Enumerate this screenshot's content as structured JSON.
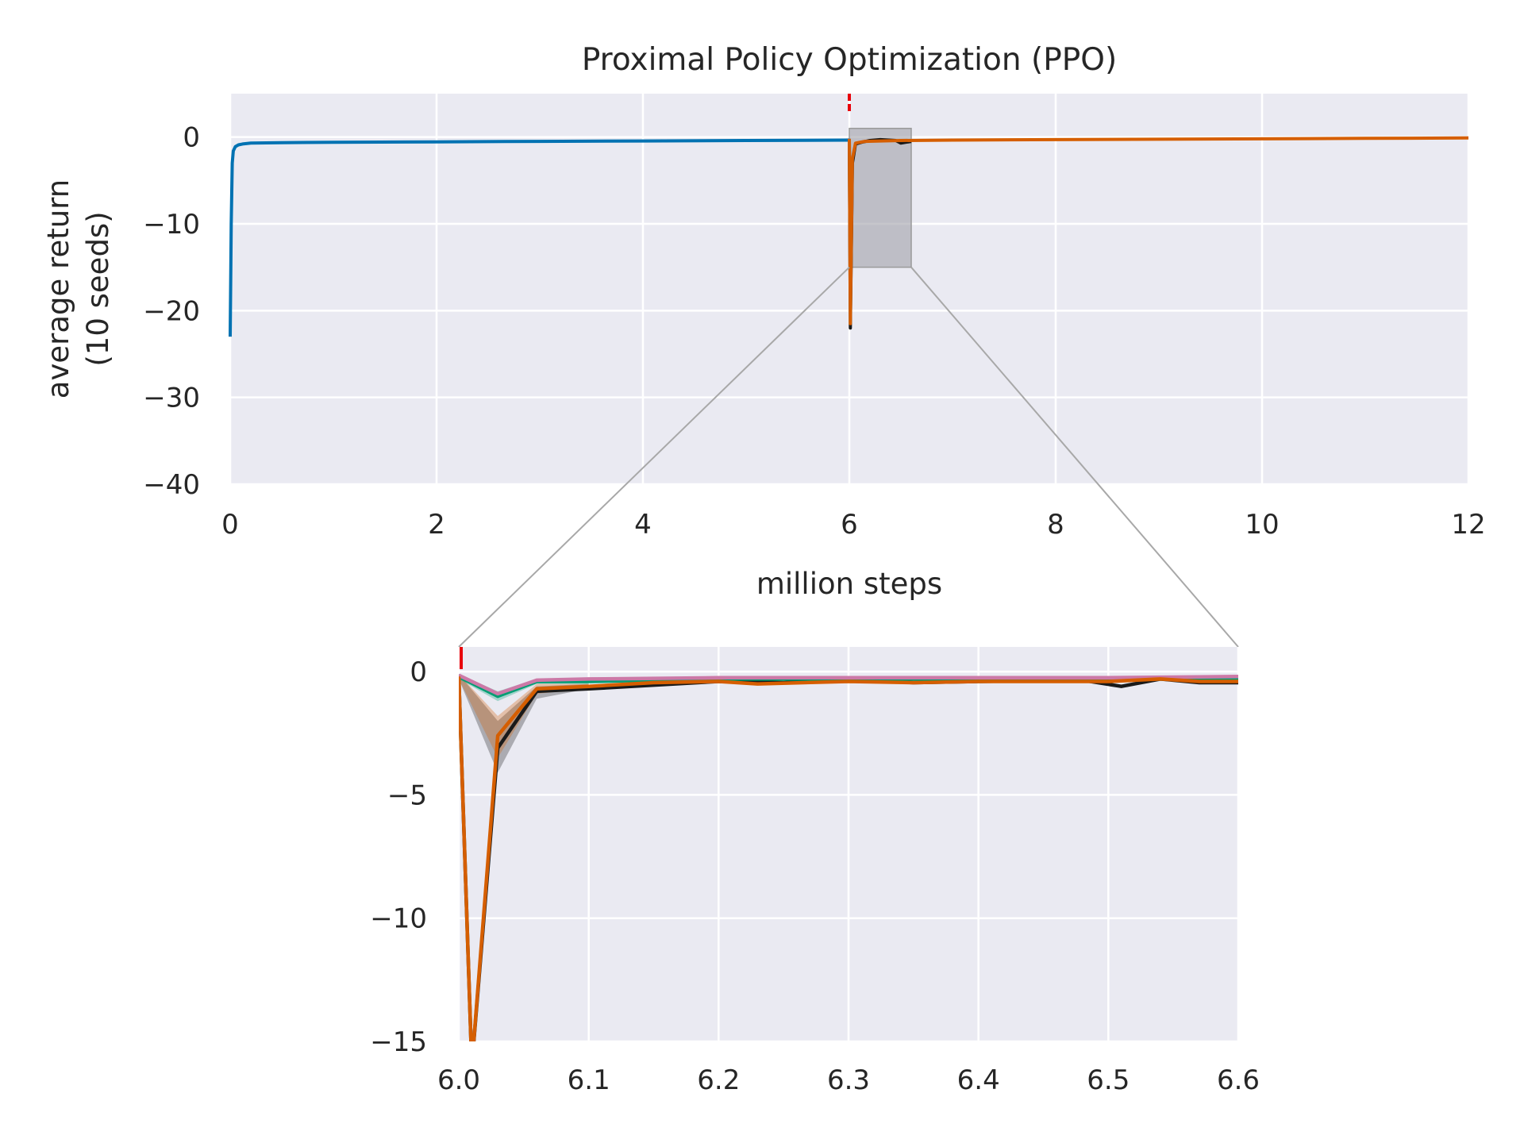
{
  "chart_data": [
    {
      "type": "line",
      "title": "Proximal Policy Optimization (PPO)",
      "xlabel": "million steps",
      "ylabel_lines": [
        "average return",
        "(10 seeds)"
      ],
      "xlim": [
        0,
        12
      ],
      "ylim": [
        -40,
        5
      ],
      "xticks": [
        0,
        2,
        4,
        6,
        8,
        10,
        12
      ],
      "yticks": [
        0,
        -10,
        -20,
        -30,
        -40
      ],
      "grid": true,
      "annotations": {
        "switch_marker_x": 6,
        "zoom_region": {
          "x": [
            6.0,
            6.6
          ],
          "y": [
            -15,
            1
          ]
        }
      },
      "series": [
        {
          "color": "#0072b2",
          "x": [
            0,
            0.01,
            0.02,
            0.03,
            0.05,
            0.08,
            0.12,
            0.2,
            0.5,
            1,
            2,
            3,
            4,
            5,
            6
          ],
          "y": [
            -23,
            -10,
            -3,
            -1.6,
            -1.1,
            -0.9,
            -0.8,
            -0.7,
            -0.65,
            -0.6,
            -0.55,
            -0.5,
            -0.45,
            -0.4,
            -0.35
          ]
        },
        {
          "color": "#1a1a1a",
          "x": [
            6,
            6.01,
            6.03,
            6.06,
            6.12,
            6.2,
            6.3,
            6.45,
            6.5,
            6.6
          ],
          "y": [
            -0.2,
            -22,
            -3,
            -0.8,
            -0.6,
            -0.4,
            -0.3,
            -0.4,
            -0.7,
            -0.5
          ]
        },
        {
          "color": "#d55e00",
          "x": [
            6,
            6.01,
            6.03,
            6.06,
            6.15,
            6.3,
            6.5,
            7,
            8,
            9,
            10,
            11,
            12
          ],
          "y": [
            -0.2,
            -21.5,
            -2.5,
            -0.7,
            -0.5,
            -0.45,
            -0.4,
            -0.35,
            -0.3,
            -0.25,
            -0.2,
            -0.15,
            -0.1
          ]
        }
      ]
    },
    {
      "type": "line",
      "title": "",
      "xlim": [
        6.0,
        6.6
      ],
      "ylim": [
        -15,
        1
      ],
      "xticks": [
        6.0,
        6.1,
        6.2,
        6.3,
        6.4,
        6.5,
        6.6
      ],
      "xtick_labels": [
        "6.0",
        "6.1",
        "6.2",
        "6.3",
        "6.4",
        "6.5",
        "6.6"
      ],
      "yticks": [
        0,
        -5,
        -10,
        -15
      ],
      "grid": true,
      "annotations": {
        "switch_marker_x": 6.0
      },
      "bands": [
        {
          "color": "#1a1a1a",
          "x": [
            6.0,
            6.03,
            6.06,
            6.1
          ],
          "upper": [
            -0.1,
            -2.0,
            -0.6,
            -0.5
          ],
          "lower": [
            -0.3,
            -4.1,
            -1.1,
            -0.7
          ]
        },
        {
          "color": "#d55e00",
          "x": [
            6.0,
            6.03,
            6.06,
            6.1
          ],
          "upper": [
            -0.1,
            -1.8,
            -0.5,
            -0.5
          ],
          "lower": [
            -0.3,
            -3.5,
            -0.9,
            -0.7
          ]
        },
        {
          "color": "#009e73",
          "x": [
            6.0,
            6.03,
            6.06,
            6.1
          ],
          "upper": [
            -0.1,
            -0.8,
            -0.3,
            -0.3
          ],
          "lower": [
            -0.3,
            -1.2,
            -0.5,
            -0.5
          ]
        }
      ],
      "series": [
        {
          "color": "#1a1a1a",
          "x": [
            6.0,
            6.01,
            6.03,
            6.06,
            6.1,
            6.15,
            6.2,
            6.25,
            6.3,
            6.35,
            6.4,
            6.48,
            6.51,
            6.54,
            6.57,
            6.6
          ],
          "y": [
            -0.2,
            -16,
            -3.1,
            -0.8,
            -0.7,
            -0.55,
            -0.4,
            -0.45,
            -0.3,
            -0.45,
            -0.4,
            -0.35,
            -0.6,
            -0.3,
            -0.45,
            -0.45
          ]
        },
        {
          "color": "#009e73",
          "x": [
            6.0,
            6.03,
            6.06,
            6.1,
            6.15,
            6.2,
            6.3,
            6.4,
            6.5,
            6.6
          ],
          "y": [
            -0.2,
            -1.0,
            -0.4,
            -0.4,
            -0.35,
            -0.3,
            -0.3,
            -0.3,
            -0.3,
            -0.3
          ]
        },
        {
          "color": "#cc79a7",
          "x": [
            6.0,
            6.03,
            6.06,
            6.1,
            6.2,
            6.3,
            6.4,
            6.5,
            6.6
          ],
          "y": [
            -0.15,
            -0.9,
            -0.35,
            -0.3,
            -0.25,
            -0.25,
            -0.25,
            -0.25,
            -0.2
          ]
        },
        {
          "color": "#d55e00",
          "x": [
            6.0,
            6.01,
            6.03,
            6.06,
            6.1,
            6.15,
            6.2,
            6.23,
            6.3,
            6.35,
            6.4,
            6.5,
            6.54,
            6.57,
            6.6
          ],
          "y": [
            -0.2,
            -16,
            -2.6,
            -0.7,
            -0.6,
            -0.45,
            -0.4,
            -0.5,
            -0.4,
            -0.45,
            -0.4,
            -0.4,
            -0.3,
            -0.4,
            -0.4
          ]
        }
      ]
    }
  ]
}
